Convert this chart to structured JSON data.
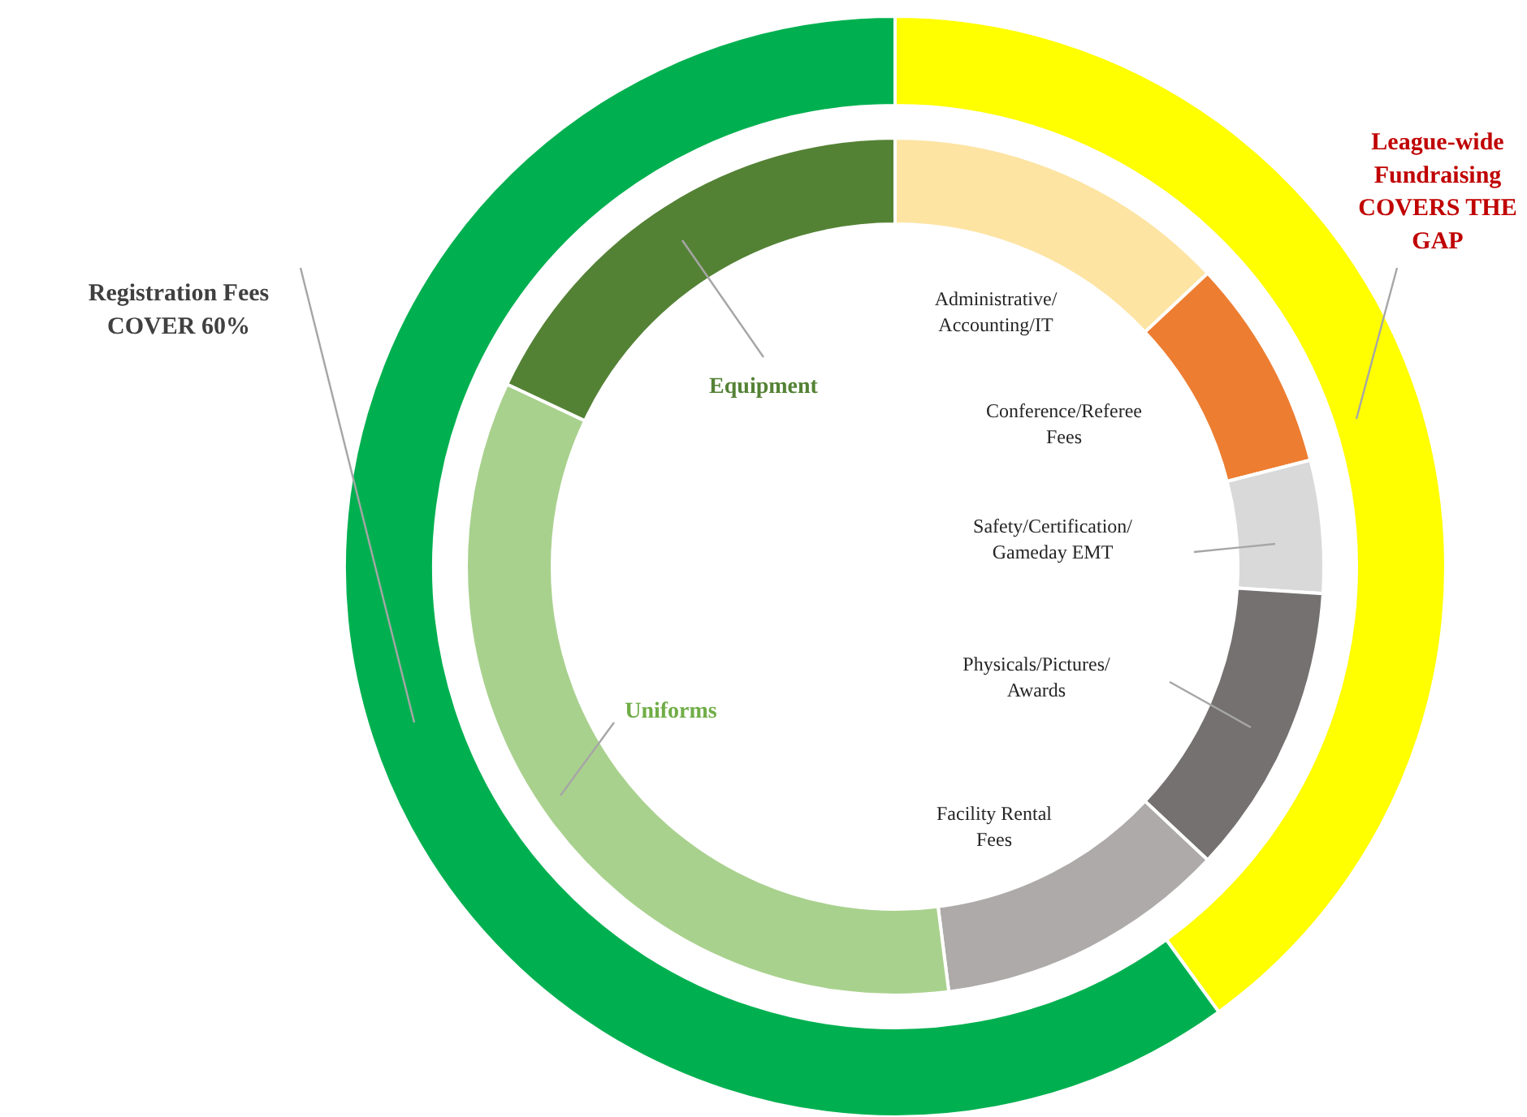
{
  "chart_data": [
    {
      "type": "donut",
      "categories": [
        "League-wide Fundraising COVERS THE GAP",
        "Registration Fees COVER 60%"
      ],
      "values": [
        40,
        60
      ],
      "colors": [
        "#ffff00",
        "#00b050"
      ]
    },
    {
      "type": "donut",
      "categories": [
        "Administrative/Accounting/IT",
        "Conference/Referee Fees",
        "Safety/Certification/ Gameday EMT",
        "Physicals/Pictures/ Awards",
        "Facility Rental Fees",
        "Uniforms",
        "Equipment"
      ],
      "values": [
        13,
        8,
        5,
        11,
        11,
        34,
        18
      ],
      "colors": [
        "#fde4a3",
        "#ed7d31",
        "#d9d9d9",
        "#767171",
        "#aeaaaa",
        "#a9d18e",
        "#548235"
      ]
    }
  ]
}
